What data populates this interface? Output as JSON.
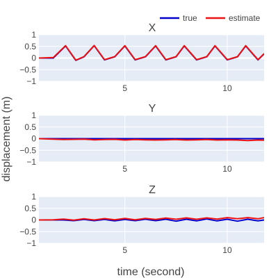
{
  "chart_data": {
    "type": "line",
    "xlabel": "time (second)",
    "ylabel": "displacement (m)",
    "xlim": [
      0.8,
      11.8
    ],
    "ylim": [
      -1,
      1
    ],
    "xticks": [
      5,
      10
    ],
    "yticks": [
      1,
      0.5,
      0,
      -0.5,
      -1
    ],
    "grid": true,
    "legend": {
      "placement": "top-right",
      "entries": [
        {
          "name": "true",
          "color": "#0000cc"
        },
        {
          "name": "estimate",
          "color": "#ee1111"
        }
      ]
    },
    "subplots": [
      {
        "title": "X",
        "series": [
          {
            "name": "true",
            "x": [
              0.8,
              1.5,
              2.1,
              2.6,
              3.0,
              3.5,
              4.0,
              4.5,
              5.0,
              5.5,
              6.0,
              6.5,
              7.0,
              7.5,
              7.9,
              8.5,
              9.0,
              9.4,
              10.0,
              10.5,
              10.9,
              11.5,
              11.8
            ],
            "y": [
              0.0,
              0.0,
              0.52,
              -0.1,
              0.05,
              0.53,
              -0.08,
              0.05,
              0.52,
              -0.08,
              0.05,
              0.52,
              -0.08,
              0.05,
              0.52,
              -0.08,
              0.05,
              0.52,
              -0.08,
              0.05,
              0.52,
              -0.08,
              0.18
            ]
          },
          {
            "name": "estimate",
            "x": [
              0.8,
              1.5,
              2.1,
              2.6,
              3.0,
              3.5,
              4.0,
              4.5,
              5.0,
              5.5,
              6.0,
              6.5,
              7.0,
              7.5,
              7.9,
              8.5,
              9.0,
              9.4,
              10.0,
              10.5,
              10.9,
              11.5,
              11.8
            ],
            "y": [
              0.0,
              0.02,
              0.53,
              -0.09,
              0.06,
              0.54,
              -0.07,
              0.06,
              0.53,
              -0.07,
              0.06,
              0.53,
              -0.07,
              0.06,
              0.53,
              -0.07,
              0.06,
              0.53,
              -0.07,
              0.06,
              0.53,
              -0.07,
              0.19
            ]
          }
        ]
      },
      {
        "title": "Y",
        "series": [
          {
            "name": "true",
            "x": [
              0.8,
              11.8
            ],
            "y": [
              0.0,
              0.0
            ]
          },
          {
            "name": "estimate",
            "x": [
              0.8,
              1.5,
              2.0,
              2.5,
              3.0,
              3.5,
              4.0,
              4.5,
              5.0,
              5.5,
              6.0,
              6.5,
              7.0,
              7.5,
              8.0,
              8.5,
              9.0,
              9.5,
              10.0,
              10.5,
              11.0,
              11.5,
              11.8
            ],
            "y": [
              0.0,
              -0.02,
              -0.04,
              -0.03,
              -0.02,
              -0.05,
              -0.04,
              -0.03,
              -0.06,
              -0.04,
              -0.05,
              -0.06,
              -0.05,
              -0.04,
              -0.06,
              -0.05,
              -0.04,
              -0.06,
              -0.05,
              -0.06,
              -0.08,
              -0.06,
              -0.07
            ]
          }
        ]
      },
      {
        "title": "Z",
        "series": [
          {
            "name": "true",
            "x": [
              0.8,
              2.0,
              2.5,
              3.0,
              3.5,
              4.0,
              4.5,
              5.0,
              5.5,
              6.0,
              6.5,
              7.0,
              7.5,
              8.0,
              8.5,
              9.0,
              9.5,
              10.0,
              10.5,
              11.0,
              11.5,
              11.8
            ],
            "y": [
              0.0,
              0.0,
              -0.03,
              0.02,
              -0.03,
              0.02,
              -0.04,
              0.02,
              -0.03,
              0.03,
              -0.03,
              0.03,
              -0.05,
              0.03,
              -0.04,
              0.04,
              -0.04,
              0.03,
              -0.05,
              0.03,
              -0.04,
              0.0
            ]
          },
          {
            "name": "estimate",
            "x": [
              0.8,
              1.5,
              2.0,
              2.5,
              3.0,
              3.5,
              4.0,
              4.5,
              5.0,
              5.5,
              6.0,
              6.5,
              7.0,
              7.5,
              8.0,
              8.5,
              9.0,
              9.5,
              10.0,
              10.5,
              11.0,
              11.5,
              11.8
            ],
            "y": [
              0.0,
              0.01,
              0.04,
              -0.01,
              0.05,
              0.0,
              0.06,
              0.01,
              0.07,
              0.01,
              0.07,
              0.02,
              0.08,
              0.03,
              0.09,
              0.03,
              0.09,
              0.04,
              0.1,
              0.05,
              0.1,
              0.05,
              0.1
            ]
          }
        ]
      }
    ]
  }
}
